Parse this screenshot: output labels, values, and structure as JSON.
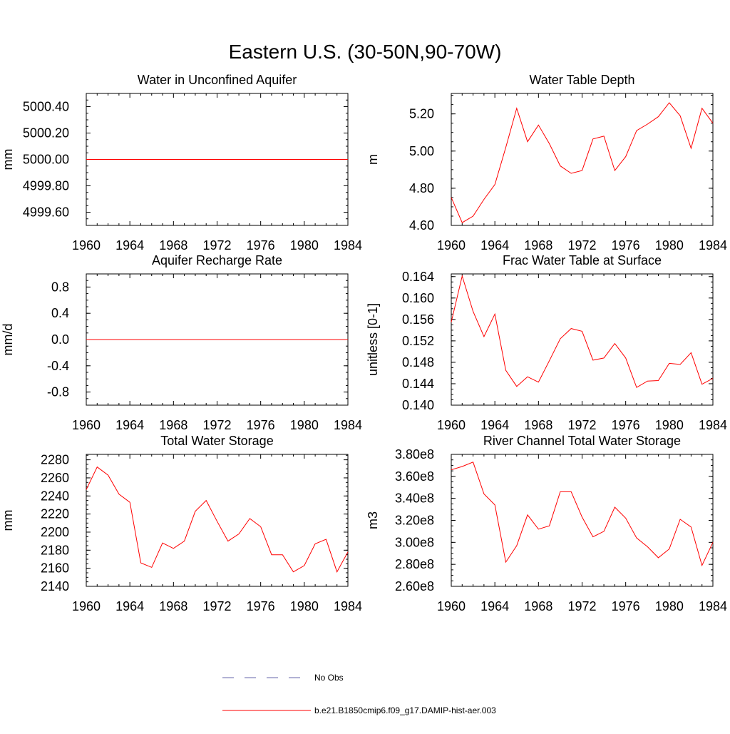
{
  "page_title": "Eastern U.S. (30-50N,90-70W)",
  "legend": {
    "items": [
      {
        "label": "No Obs",
        "color": "#6666aa",
        "style": "dashed"
      },
      {
        "label": "b.e21.B1850cmip6.f09_g17.DAMIP-hist-aer.003",
        "color": "#ff0000",
        "style": "solid"
      }
    ]
  },
  "chart_data": [
    {
      "type": "line",
      "title": "Water in Unconfined Aquifer",
      "xlabel": "",
      "ylabel": "mm",
      "xlim": [
        1960,
        1984
      ],
      "ylim": [
        4999.5,
        5000.5
      ],
      "xticks": [
        "1960",
        "1964",
        "1968",
        "1972",
        "1976",
        "1980",
        "1984"
      ],
      "yticks": [
        {
          "value": 4999.6,
          "label": "4999.60"
        },
        {
          "value": 4999.8,
          "label": "4999.80"
        },
        {
          "value": 5000.0,
          "label": "5000.00"
        },
        {
          "value": 5000.2,
          "label": "5000.20"
        },
        {
          "value": 5000.4,
          "label": "5000.40"
        }
      ],
      "series": [
        {
          "name": "b.e21.B1850cmip6.f09_g17.DAMIP-hist-aer.003",
          "color": "#ff0000",
          "x": [
            1960,
            1961,
            1962,
            1963,
            1964,
            1965,
            1966,
            1967,
            1968,
            1969,
            1970,
            1971,
            1972,
            1973,
            1974,
            1975,
            1976,
            1977,
            1978,
            1979,
            1980,
            1981,
            1982,
            1983,
            1984
          ],
          "y": [
            5000,
            5000,
            5000,
            5000,
            5000,
            5000,
            5000,
            5000,
            5000,
            5000,
            5000,
            5000,
            5000,
            5000,
            5000,
            5000,
            5000,
            5000,
            5000,
            5000,
            5000,
            5000,
            5000,
            5000,
            5000
          ]
        }
      ]
    },
    {
      "type": "line",
      "title": "Water Table Depth",
      "xlabel": "",
      "ylabel": "m",
      "xlim": [
        1960,
        1984
      ],
      "ylim": [
        4.6,
        5.31
      ],
      "xticks": [
        "1960",
        "1964",
        "1968",
        "1972",
        "1976",
        "1980",
        "1984"
      ],
      "yticks": [
        {
          "value": 4.6,
          "label": "4.60"
        },
        {
          "value": 4.8,
          "label": "4.80"
        },
        {
          "value": 5.0,
          "label": "5.00"
        },
        {
          "value": 5.2,
          "label": "5.20"
        }
      ],
      "series": [
        {
          "name": "b.e21.B1850cmip6.f09_g17.DAMIP-hist-aer.003",
          "color": "#ff0000",
          "x": [
            1960,
            1961,
            1962,
            1963,
            1964,
            1965,
            1966,
            1967,
            1968,
            1969,
            1970,
            1971,
            1972,
            1973,
            1974,
            1975,
            1976,
            1977,
            1978,
            1979,
            1980,
            1981,
            1982,
            1983,
            1984
          ],
          "y": [
            4.75,
            4.615,
            4.65,
            4.74,
            4.82,
            5.02,
            5.23,
            5.05,
            5.14,
            5.04,
            4.92,
            4.88,
            4.895,
            5.065,
            5.08,
            4.895,
            4.97,
            5.11,
            5.145,
            5.185,
            5.26,
            5.19,
            5.015,
            5.23,
            5.15
          ]
        }
      ]
    },
    {
      "type": "line",
      "title": "Aquifer Recharge Rate",
      "xlabel": "",
      "ylabel": "mm/d",
      "xlim": [
        1960,
        1984
      ],
      "ylim": [
        -1.0,
        1.0
      ],
      "xticks": [
        "1960",
        "1964",
        "1968",
        "1972",
        "1976",
        "1980",
        "1984"
      ],
      "yticks": [
        {
          "value": -0.8,
          "label": "-0.8"
        },
        {
          "value": -0.4,
          "label": "-0.4"
        },
        {
          "value": 0.0,
          "label": "0.0"
        },
        {
          "value": 0.4,
          "label": "0.4"
        },
        {
          "value": 0.8,
          "label": "0.8"
        }
      ],
      "series": [
        {
          "name": "b.e21.B1850cmip6.f09_g17.DAMIP-hist-aer.003",
          "color": "#ff0000",
          "x": [
            1960,
            1961,
            1962,
            1963,
            1964,
            1965,
            1966,
            1967,
            1968,
            1969,
            1970,
            1971,
            1972,
            1973,
            1974,
            1975,
            1976,
            1977,
            1978,
            1979,
            1980,
            1981,
            1982,
            1983,
            1984
          ],
          "y": [
            0,
            0,
            0,
            0,
            0,
            0,
            0,
            0,
            0,
            0,
            0,
            0,
            0,
            0,
            0,
            0,
            0,
            0,
            0,
            0,
            0,
            0,
            0,
            0,
            0
          ]
        }
      ]
    },
    {
      "type": "line",
      "title": "Frac Water Table at Surface",
      "xlabel": "",
      "ylabel": "unitless [0-1]",
      "xlim": [
        1960,
        1984
      ],
      "ylim": [
        0.14,
        0.1645
      ],
      "xticks": [
        "1960",
        "1964",
        "1968",
        "1972",
        "1976",
        "1980",
        "1984"
      ],
      "yticks": [
        {
          "value": 0.14,
          "label": "0.140"
        },
        {
          "value": 0.144,
          "label": "0.144"
        },
        {
          "value": 0.148,
          "label": "0.148"
        },
        {
          "value": 0.152,
          "label": "0.152"
        },
        {
          "value": 0.156,
          "label": "0.156"
        },
        {
          "value": 0.16,
          "label": "0.160"
        },
        {
          "value": 0.164,
          "label": "0.164"
        }
      ],
      "series": [
        {
          "name": "b.e21.B1850cmip6.f09_g17.DAMIP-hist-aer.003",
          "color": "#ff0000",
          "x": [
            1960,
            1961,
            1962,
            1963,
            1964,
            1965,
            1966,
            1967,
            1968,
            1969,
            1970,
            1971,
            1972,
            1973,
            1974,
            1975,
            1976,
            1977,
            1978,
            1979,
            1980,
            1981,
            1982,
            1983,
            1984
          ],
          "y": [
            0.1555,
            0.1641,
            0.1575,
            0.1528,
            0.157,
            0.1465,
            0.1435,
            0.1453,
            0.1443,
            0.1483,
            0.1524,
            0.1543,
            0.1538,
            0.1484,
            0.1488,
            0.1515,
            0.1488,
            0.1433,
            0.1445,
            0.1446,
            0.1478,
            0.1476,
            0.1498,
            0.1439,
            0.145
          ]
        }
      ]
    },
    {
      "type": "line",
      "title": "Total Water Storage",
      "xlabel": "",
      "ylabel": "mm",
      "xlim": [
        1960,
        1984
      ],
      "ylim": [
        2140,
        2286
      ],
      "xticks": [
        "1960",
        "1964",
        "1968",
        "1972",
        "1976",
        "1980",
        "1984"
      ],
      "yticks": [
        {
          "value": 2140,
          "label": "2140"
        },
        {
          "value": 2160,
          "label": "2160"
        },
        {
          "value": 2180,
          "label": "2180"
        },
        {
          "value": 2200,
          "label": "2200"
        },
        {
          "value": 2220,
          "label": "2220"
        },
        {
          "value": 2240,
          "label": "2240"
        },
        {
          "value": 2260,
          "label": "2260"
        },
        {
          "value": 2280,
          "label": "2280"
        }
      ],
      "series": [
        {
          "name": "b.e21.B1850cmip6.f09_g17.DAMIP-hist-aer.003",
          "color": "#ff0000",
          "x": [
            1960,
            1961,
            1962,
            1963,
            1964,
            1965,
            1966,
            1967,
            1968,
            1969,
            1970,
            1971,
            1972,
            1973,
            1974,
            1975,
            1976,
            1977,
            1978,
            1979,
            1980,
            1981,
            1982,
            1983,
            1984
          ],
          "y": [
            2247,
            2272,
            2263,
            2242,
            2233,
            2166,
            2161,
            2188,
            2182,
            2190,
            2223,
            2235,
            2212,
            2190,
            2198,
            2215,
            2206,
            2175,
            2175,
            2156,
            2163,
            2187,
            2192,
            2156,
            2178
          ]
        }
      ]
    },
    {
      "type": "line",
      "title": "River Channel Total Water Storage",
      "xlabel": "",
      "ylabel": "m3",
      "xlim": [
        1960,
        1984
      ],
      "ylim": [
        260000000.0,
        380000000.0
      ],
      "xticks": [
        "1960",
        "1964",
        "1968",
        "1972",
        "1976",
        "1980",
        "1984"
      ],
      "yticks": [
        {
          "value": 260000000.0,
          "label": "2.60e8"
        },
        {
          "value": 280000000.0,
          "label": "2.80e8"
        },
        {
          "value": 300000000.0,
          "label": "3.00e8"
        },
        {
          "value": 320000000.0,
          "label": "3.20e8"
        },
        {
          "value": 340000000.0,
          "label": "3.40e8"
        },
        {
          "value": 360000000.0,
          "label": "3.60e8"
        },
        {
          "value": 380000000.0,
          "label": "3.80e8"
        }
      ],
      "series": [
        {
          "name": "b.e21.B1850cmip6.f09_g17.DAMIP-hist-aer.003",
          "color": "#ff0000",
          "x": [
            1960,
            1961,
            1962,
            1963,
            1964,
            1965,
            1966,
            1967,
            1968,
            1969,
            1970,
            1971,
            1972,
            1973,
            1974,
            1975,
            1976,
            1977,
            1978,
            1979,
            1980,
            1981,
            1982,
            1983,
            1984
          ],
          "y": [
            366000000.0,
            369000000.0,
            373000000.0,
            344000000.0,
            334000000.0,
            282000000.0,
            297000000.0,
            325000000.0,
            312000000.0,
            315000000.0,
            346000000.0,
            346000000.0,
            323000000.0,
            305000000.0,
            310000000.0,
            332000000.0,
            322000000.0,
            304000000.0,
            296000000.0,
            286000000.0,
            294000000.0,
            321000000.0,
            314000000.0,
            279000000.0,
            300000000.0
          ]
        }
      ]
    }
  ]
}
